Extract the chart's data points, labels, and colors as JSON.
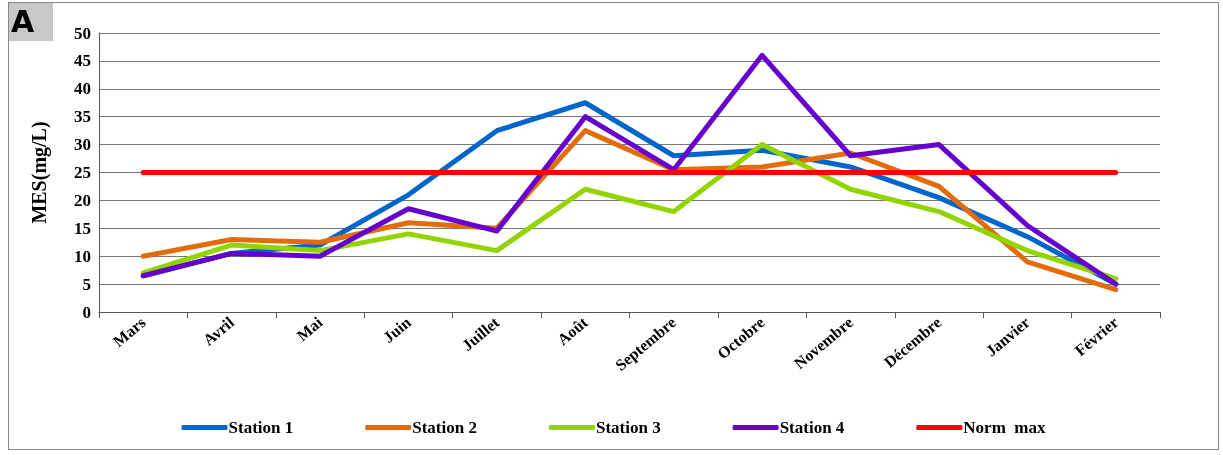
{
  "chart_data": {
    "type": "line",
    "title": "A",
    "ylabel": "MES(mg/L)",
    "categories": [
      "Mars",
      "Avril",
      "Mai",
      "Juin",
      "Juillet",
      "Août",
      "Septembre",
      "Octobre",
      "Novembre",
      "Décembre",
      "Janvier",
      "Février"
    ],
    "series": [
      {
        "name": "Station 1",
        "color": "#0066cc",
        "values": [
          6.5,
          10.5,
          12,
          21,
          32.5,
          37.5,
          28,
          29,
          26,
          20.5,
          13.5,
          5
        ]
      },
      {
        "name": "Station 2",
        "color": "#e36c0a",
        "values": [
          10,
          13,
          12.5,
          16,
          15,
          32.5,
          25.5,
          26,
          28.5,
          22.5,
          9,
          4
        ]
      },
      {
        "name": "Station 3",
        "color": "#92d400",
        "values": [
          7,
          12,
          11,
          14,
          11,
          22,
          18,
          30,
          22,
          18,
          11,
          6
        ]
      },
      {
        "name": "Station 4",
        "color": "#6600cc",
        "values": [
          6.5,
          10.5,
          10,
          18.5,
          14.5,
          35,
          25.5,
          46,
          28,
          30,
          15.5,
          5
        ]
      },
      {
        "name": "Norm  max",
        "color": "#ff0000",
        "values": [
          25,
          25,
          25,
          25,
          25,
          25,
          25,
          25,
          25,
          25,
          25,
          25
        ]
      }
    ],
    "ylim": [
      0,
      50
    ],
    "yticks": [
      0,
      5,
      10,
      15,
      20,
      25,
      30,
      35,
      40,
      45,
      50
    ],
    "grid": "y",
    "legend": "bottom",
    "marker": "none",
    "line_style": "solid"
  }
}
